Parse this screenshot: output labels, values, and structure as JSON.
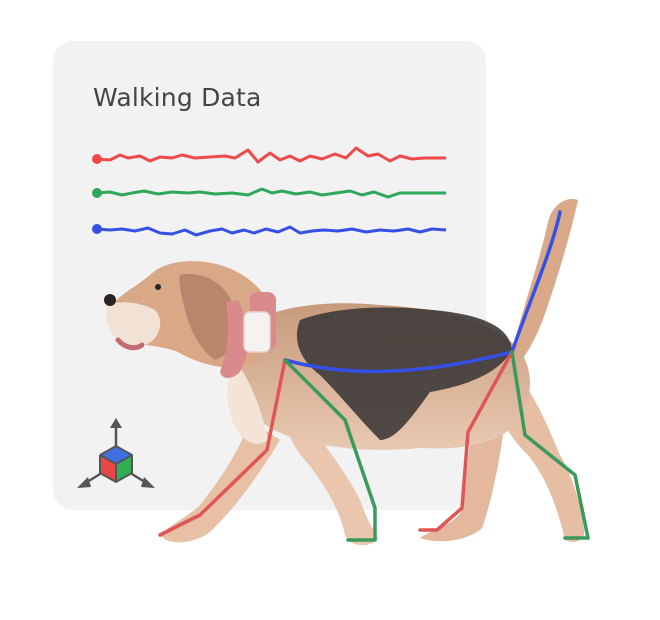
{
  "card": {
    "title": "Walking Data"
  },
  "signals": [
    {
      "color": "#ef4a4a"
    },
    {
      "color": "#2fa85a"
    },
    {
      "color": "#3550e6"
    }
  ],
  "skeleton": {
    "front_legs_color": "#e05555",
    "hind_legs_color": "#3a9a5a",
    "spine_color": "#3550e6"
  },
  "axis_icon": {
    "name": "3d-axis-cube-icon",
    "face_colors": [
      "#3f6fe0",
      "#e84747",
      "#2fae55"
    ],
    "arrow_color": "#555555"
  },
  "dog": {
    "collar_color": "#d98a8a",
    "tracker_color": "#f7f2f2"
  }
}
